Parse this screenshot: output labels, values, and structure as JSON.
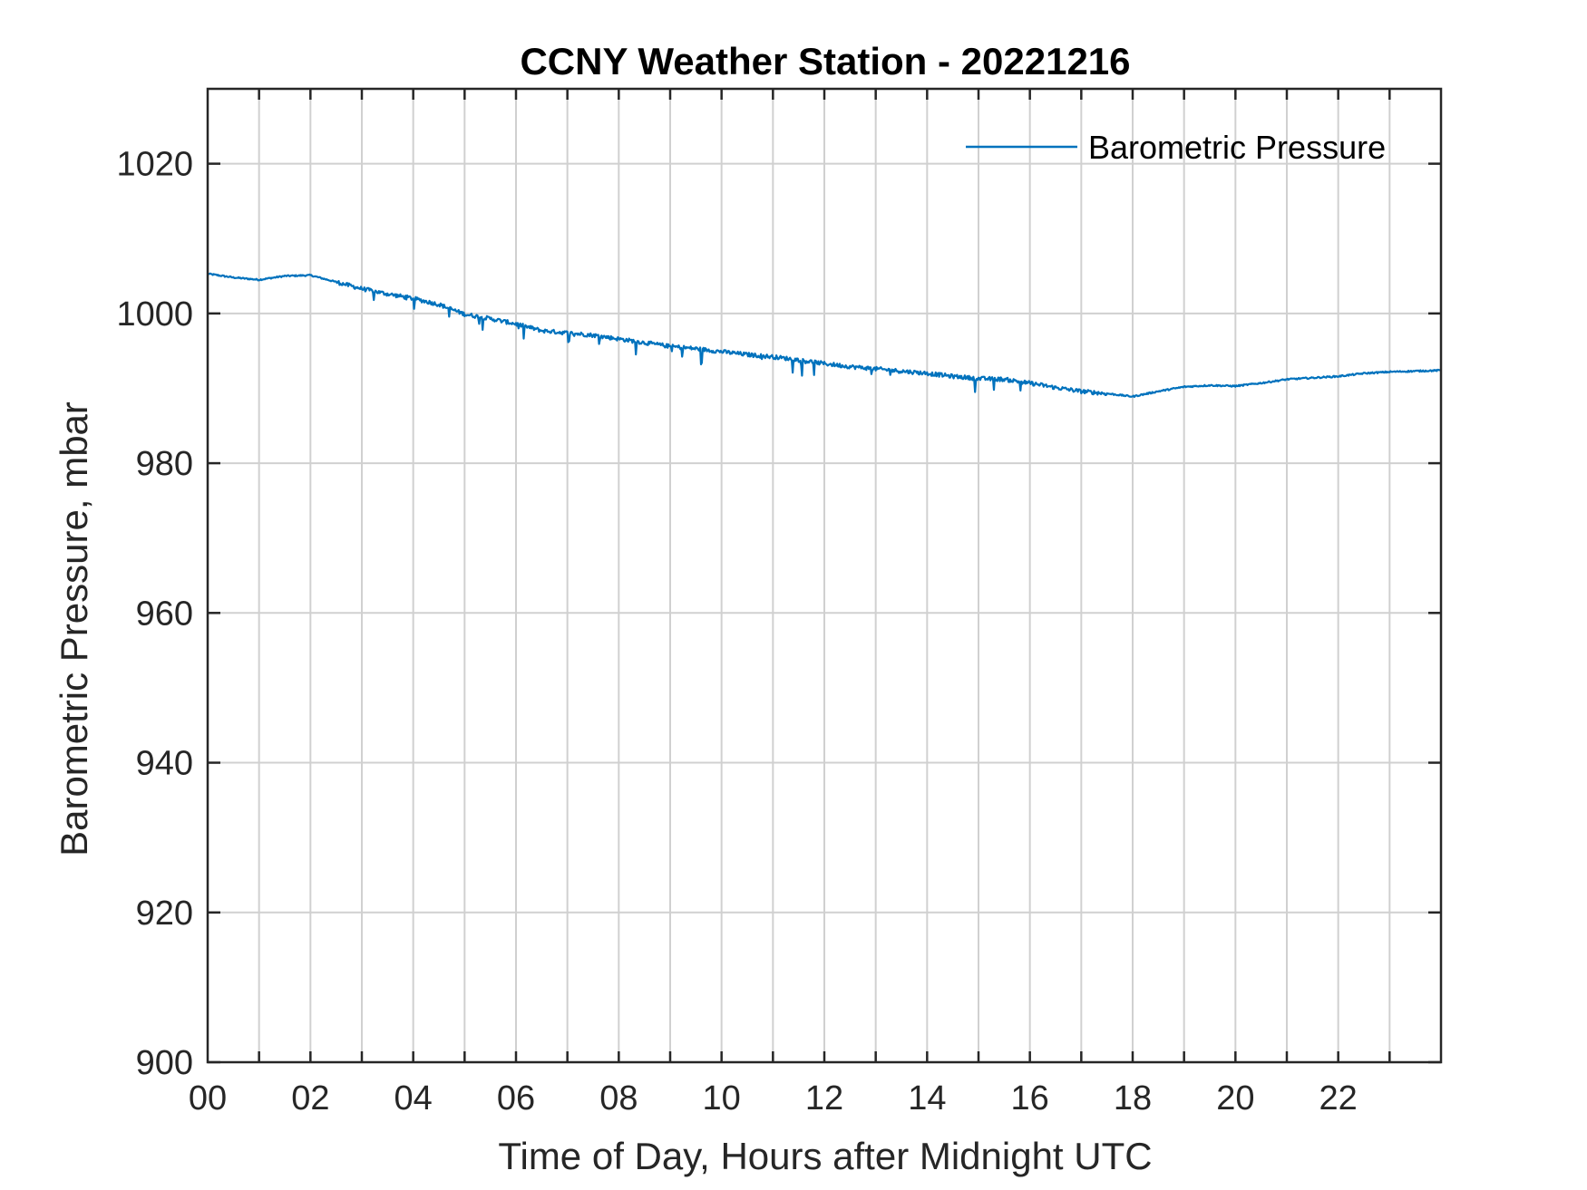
{
  "chart_data": {
    "type": "line",
    "title": "CCNY Weather Station - 20221216",
    "xlabel": "Time of Day, Hours after Midnight UTC",
    "ylabel": "Barometric Pressure, mbar",
    "xlim": [
      0,
      24
    ],
    "ylim": [
      900,
      1030
    ],
    "grid": true,
    "legend_position": "top-right",
    "xticks": [
      0,
      2,
      4,
      6,
      8,
      10,
      12,
      14,
      16,
      18,
      20,
      22
    ],
    "xtick_labels": [
      "00",
      "02",
      "04",
      "06",
      "08",
      "10",
      "12",
      "14",
      "16",
      "18",
      "20",
      "22"
    ],
    "yticks": [
      900,
      920,
      940,
      960,
      980,
      1000,
      1020
    ],
    "ytick_labels": [
      "900",
      "920",
      "940",
      "960",
      "980",
      "1000",
      "1020"
    ],
    "line_color": "#0072BD",
    "series": [
      {
        "name": "Barometric Pressure",
        "x": [
          0,
          0.5,
          1.0,
          1.5,
          2.0,
          2.5,
          3.0,
          3.5,
          4.0,
          4.5,
          5.0,
          5.5,
          6.0,
          6.5,
          7.0,
          7.5,
          8.0,
          8.5,
          9.0,
          9.5,
          10.0,
          10.5,
          11.0,
          11.5,
          12.0,
          12.5,
          13.0,
          13.5,
          14.0,
          14.5,
          15.0,
          15.5,
          16.0,
          16.5,
          17.0,
          17.5,
          18.0,
          18.5,
          19.0,
          19.5,
          20.0,
          20.5,
          21.0,
          21.5,
          22.0,
          22.5,
          23.0,
          23.5,
          24.0
        ],
        "values": [
          1005.3,
          1004.8,
          1004.5,
          1005.0,
          1005.1,
          1004.2,
          1003.3,
          1002.6,
          1002.0,
          1001.2,
          999.9,
          999.3,
          998.6,
          997.7,
          997.4,
          997.1,
          996.6,
          996.1,
          995.6,
          995.3,
          994.9,
          994.5,
          994.2,
          993.8,
          993.3,
          992.9,
          992.6,
          992.3,
          992.0,
          991.6,
          991.3,
          991.2,
          990.7,
          990.1,
          989.6,
          989.3,
          988.9,
          989.6,
          990.2,
          990.4,
          990.3,
          990.7,
          991.2,
          991.4,
          991.6,
          992.0,
          992.2,
          992.3,
          992.4
        ]
      }
    ]
  }
}
